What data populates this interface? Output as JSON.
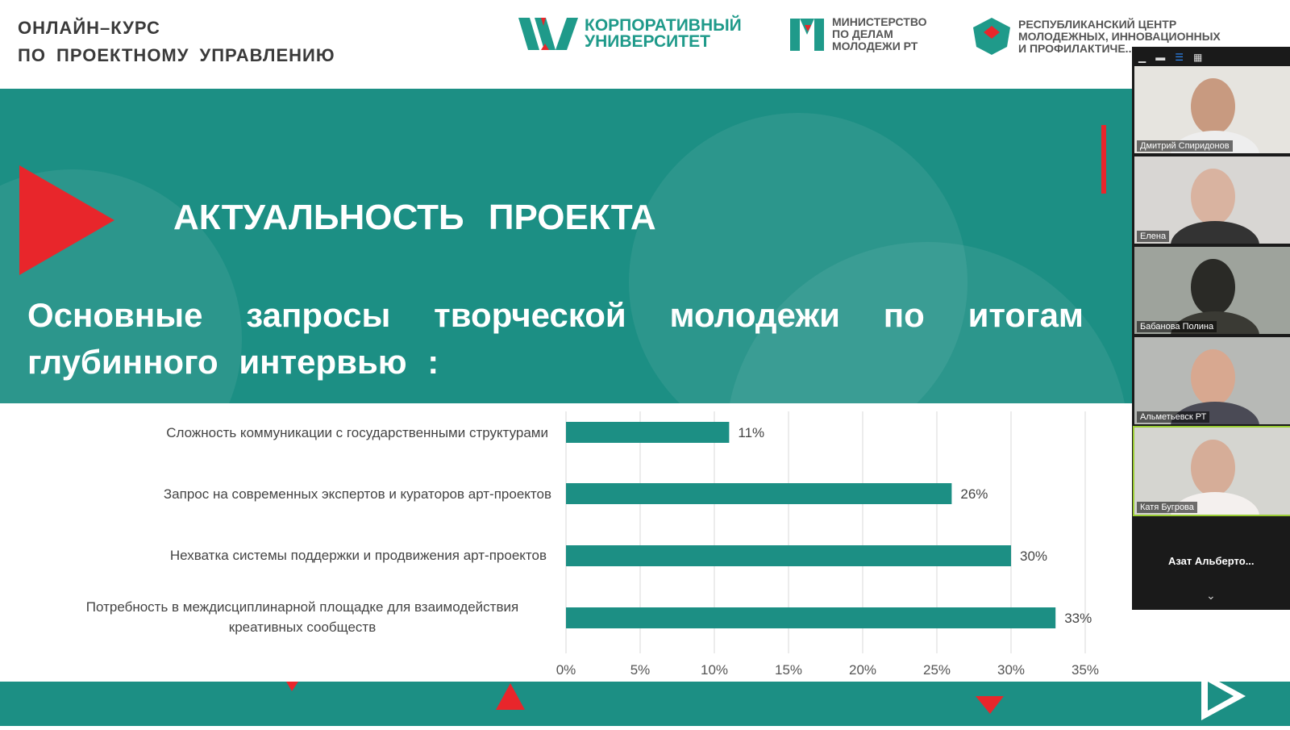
{
  "header": {
    "title_line1": "ОНЛАЙН–КУРС",
    "title_line2": "ПО ПРОЕКТНОМУ УПРАВЛЕНИЮ",
    "logos": [
      {
        "line1": "КОРПОРАТИВНЫЙ",
        "line2": "УНИВЕРСИТЕТ"
      },
      {
        "line1": "МИНИСТЕРСТВО",
        "line2": "ПО ДЕЛАМ",
        "line3": "МОЛОДЕЖИ РТ"
      },
      {
        "line1": "РЕСПУБЛИКАНСКИЙ ЦЕНТР",
        "line2": "МОЛОДЕЖНЫХ, ИННОВАЦИОННЫХ",
        "line3": "И ПРОФИЛАКТИЧЕ..."
      }
    ]
  },
  "slide": {
    "heading": "АКТУАЛЬНОСТЬ ПРОЕКТА",
    "subheading": "Основные запросы творческой молодежи по итогам глубинного интервью :"
  },
  "colors": {
    "teal": "#1c8f84",
    "red": "#e8262b"
  },
  "chart_data": {
    "type": "bar",
    "orientation": "horizontal",
    "categories": [
      "Сложность коммуникации с государственными структурами",
      "Запрос на современных экспертов и кураторов арт-проектов",
      "Нехватка системы поддержки и продвижения арт-проектов",
      "Потребность в междисциплинарной площадке для взаимодействия креативных сообществ"
    ],
    "values": [
      11,
      26,
      30,
      33
    ],
    "value_labels": [
      "11%",
      "26%",
      "30%",
      "33%"
    ],
    "xlim": [
      0,
      35
    ],
    "xticks": [
      "0%",
      "5%",
      "10%",
      "15%",
      "20%",
      "25%",
      "30%",
      "35%"
    ],
    "grid": true,
    "color": "#1c8f84"
  },
  "video_panel": {
    "participants": [
      "Дмитрий Спиридонов",
      "Елена",
      "Бабанова Полина",
      "Альметьевск РТ",
      "Катя Бугрова"
    ],
    "extra": "Азат Альберто..."
  }
}
